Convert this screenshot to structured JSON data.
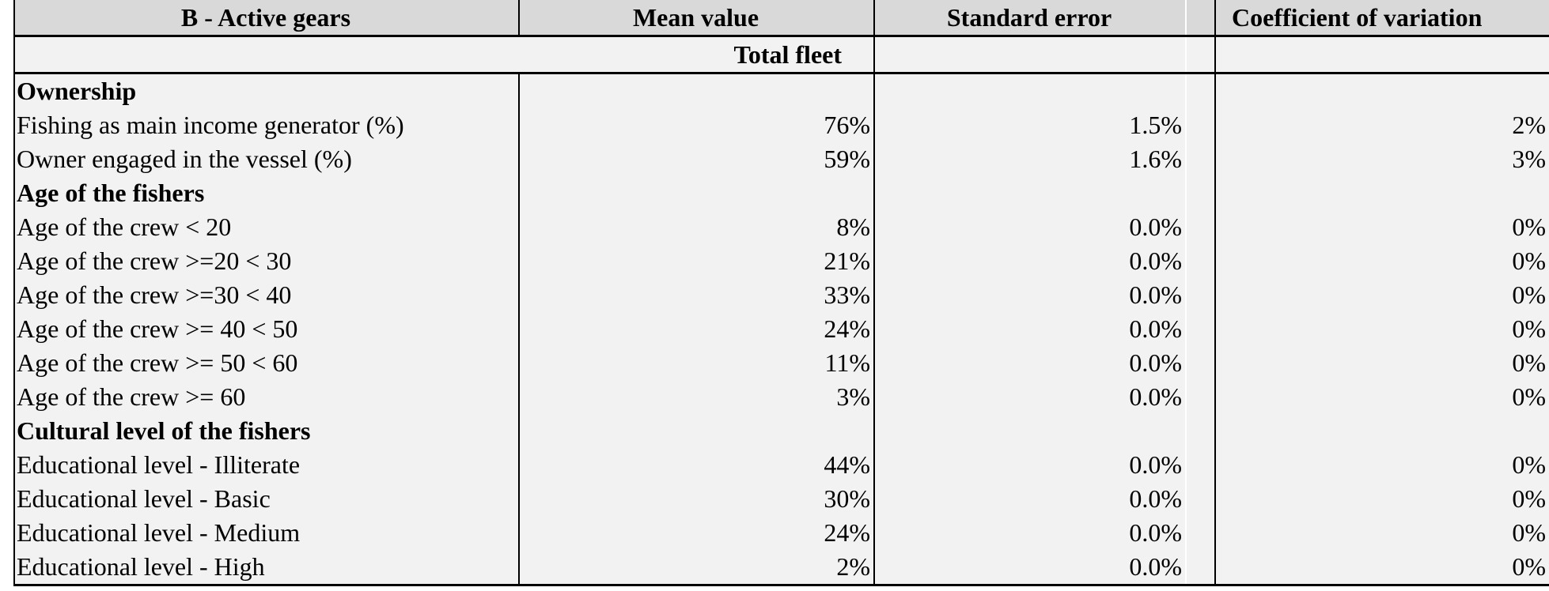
{
  "headers": [
    "B - Active gears",
    "Mean value",
    "Standard error",
    "Coefficient of variation"
  ],
  "subheader": "Total fleet",
  "rows": [
    {
      "label": "Ownership",
      "section": true,
      "mean": "",
      "se": "",
      "cv": ""
    },
    {
      "label": "Fishing as main income generator (%)",
      "mean": "76%",
      "se": "1.5%",
      "cv": "2%"
    },
    {
      "label": "Owner engaged in the vessel (%)",
      "mean": "59%",
      "se": "1.6%",
      "cv": "3%"
    },
    {
      "label": "Age of the fishers",
      "section": true,
      "mean": "",
      "se": "",
      "cv": ""
    },
    {
      "label": "Age of the crew < 20",
      "mean": "8%",
      "se": "0.0%",
      "cv": "0%"
    },
    {
      "label": "Age of the crew >=20 < 30",
      "mean": "21%",
      "se": "0.0%",
      "cv": "0%"
    },
    {
      "label": "Age of the crew >=30 < 40",
      "mean": "33%",
      "se": "0.0%",
      "cv": "0%"
    },
    {
      "label": "Age of the crew >= 40 < 50",
      "mean": "24%",
      "se": "0.0%",
      "cv": "0%"
    },
    {
      "label": "Age of the crew >= 50 < 60",
      "mean": "11%",
      "se": "0.0%",
      "cv": "0%"
    },
    {
      "label": "Age of the crew >= 60",
      "mean": "3%",
      "se": "0.0%",
      "cv": "0%"
    },
    {
      "label": "Cultural level of the fishers",
      "section": true,
      "mean": "",
      "se": "",
      "cv": ""
    },
    {
      "label": "Educational level - Illiterate",
      "mean": "44%",
      "se": "0.0%",
      "cv": "0%"
    },
    {
      "label": "Educational level - Basic",
      "mean": "30%",
      "se": "0.0%",
      "cv": "0%"
    },
    {
      "label": "Educational level - Medium",
      "mean": "24%",
      "se": "0.0%",
      "cv": "0%"
    },
    {
      "label": "Educational level - High",
      "mean": "2%",
      "se": "0.0%",
      "cv": "0%"
    }
  ],
  "colors": {
    "header_bg": "#d9d9d9",
    "body_bg": "#f2f2f2"
  }
}
